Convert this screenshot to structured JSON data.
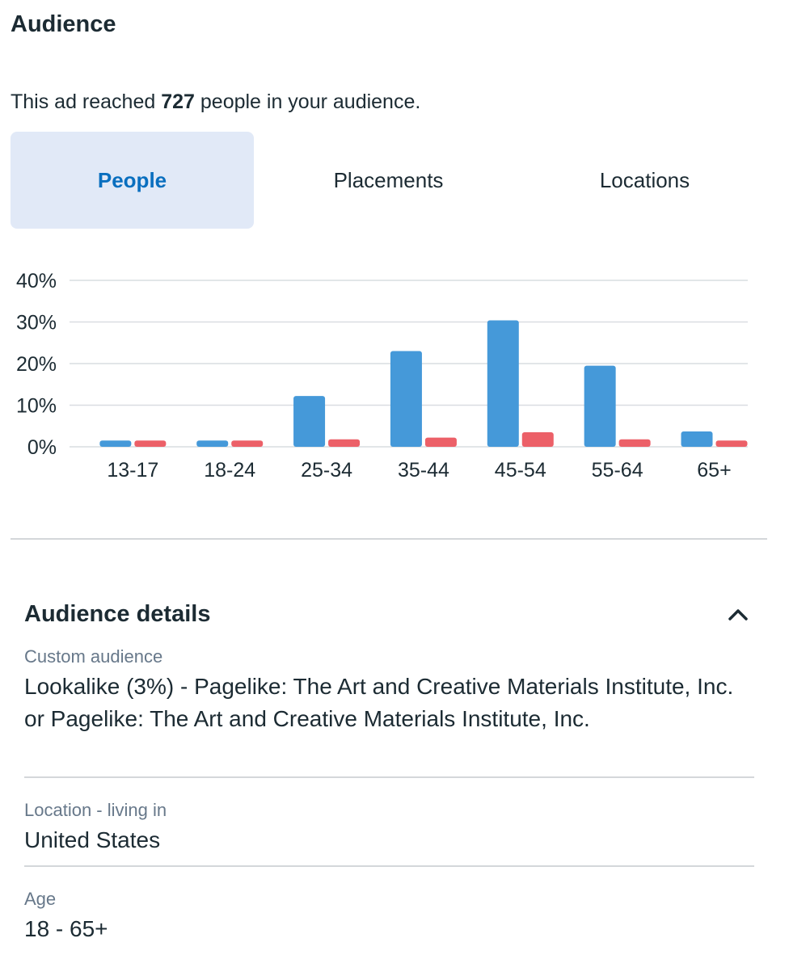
{
  "header": {
    "title": "Audience"
  },
  "reach": {
    "prefix": "This ad reached ",
    "count": "727",
    "suffix": " people in your audience."
  },
  "tabs": [
    {
      "label": "People",
      "active": true
    },
    {
      "label": "Placements",
      "active": false
    },
    {
      "label": "Locations",
      "active": false
    }
  ],
  "chart_data": {
    "type": "bar",
    "categories": [
      "13-17",
      "18-24",
      "25-34",
      "35-44",
      "45-54",
      "55-64",
      "65+"
    ],
    "series": [
      {
        "color": "#4599d9",
        "values": [
          1.5,
          1.5,
          12.2,
          23.0,
          30.4,
          19.5,
          3.7
        ]
      },
      {
        "color": "#ec6068",
        "values": [
          1.5,
          1.5,
          1.8,
          2.2,
          3.5,
          1.8,
          1.5
        ]
      }
    ],
    "yticks": [
      "0%",
      "10%",
      "20%",
      "30%",
      "40%"
    ],
    "ylim": [
      0,
      40
    ],
    "grid": true
  },
  "details": {
    "title": "Audience details",
    "fields": [
      {
        "label": "Custom audience",
        "value": "Lookalike (3%) - Pagelike: The Art and Creative Materials Institute, Inc. or Pagelike: The Art and Creative Materials Institute, Inc."
      },
      {
        "label": "Location - living in",
        "value": "United States"
      },
      {
        "label": "Age",
        "value": "18 - 65+"
      }
    ]
  },
  "icons": {
    "collapse": "chevron-up-icon"
  }
}
